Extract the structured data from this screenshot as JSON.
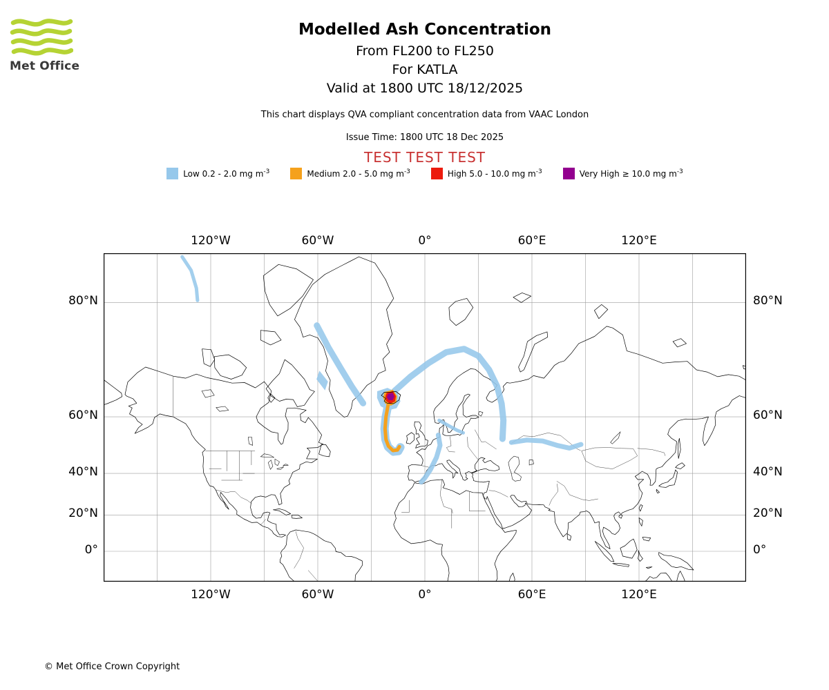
{
  "logo": {
    "text": "Met Office"
  },
  "header": {
    "title": "Modelled Ash Concentration",
    "subtitle_levels": "From FL200 to FL250",
    "subtitle_volcano": "For KATLA",
    "subtitle_valid": "Valid at 1800 UTC 18/12/2025",
    "qva_note": "This chart displays QVA compliant concentration data from VAAC London",
    "issue_time": "Issue Time: 1800 UTC 18 Dec 2025",
    "test_banner": "TEST TEST TEST"
  },
  "legend": {
    "items": [
      {
        "key": "low",
        "label": "Low 0.2 - 2.0 mg m",
        "sup": "-3",
        "color": "#96C8EB"
      },
      {
        "key": "medium",
        "label": "Medium 2.0 - 5.0 mg m",
        "sup": "-3",
        "color": "#F5A11C"
      },
      {
        "key": "high",
        "label": "High 5.0 - 10.0 mg m",
        "sup": "-3",
        "color": "#EC1B0E"
      },
      {
        "key": "very-high",
        "label": "Very High ≥ 10.0 mg m",
        "sup": "-3",
        "color": "#93008F"
      }
    ]
  },
  "map": {
    "lon_ticks": [
      {
        "lon": -120,
        "label": "120°W"
      },
      {
        "lon": -60,
        "label": "60°W"
      },
      {
        "lon": 0,
        "label": "0°"
      },
      {
        "lon": 60,
        "label": "60°E"
      },
      {
        "lon": 120,
        "label": "120°E"
      }
    ],
    "lat_ticks": [
      {
        "lat": 80,
        "label": "80°N"
      },
      {
        "lat": 60,
        "label": "60°N"
      },
      {
        "lat": 40,
        "label": "40°N"
      },
      {
        "lat": 20,
        "label": "20°N"
      },
      {
        "lat": 0,
        "label": "0°"
      }
    ]
  },
  "footer": {
    "copyright": "© Met Office Crown Copyright"
  },
  "chart_data": {
    "type": "map",
    "projection": "mercator",
    "extent": {
      "lon_min": -180,
      "lon_max": 180,
      "lat_min": -16.9,
      "lat_max": 83.9
    },
    "volcano": "KATLA",
    "bands": [
      {
        "level": "low",
        "label": "Low",
        "min_mg_m3": 0.2,
        "max_mg_m3": 2.0,
        "color": "#96C8EB",
        "shapes": [
          {
            "kind": "ribbon",
            "width": 5,
            "points": [
              [
                -136,
                83.6
              ],
              [
                -131,
                82.7
              ],
              [
                -128,
                81.3
              ],
              [
                -127.4,
                80.2
              ]
            ]
          },
          {
            "kind": "ribbon",
            "width": 9,
            "points": [
              [
                -60.5,
                77.5
              ],
              [
                -54,
                74.5
              ],
              [
                -47,
                71
              ],
              [
                -41,
                67.5
              ],
              [
                -36.5,
                64.8
              ],
              [
                -34.6,
                63.6
              ]
            ]
          },
          {
            "kind": "poly",
            "points": [
              [
                -59,
                70.5
              ],
              [
                -54.5,
                68.5
              ],
              [
                -56,
                66.8
              ],
              [
                -60.5,
                69
              ]
            ]
          },
          {
            "kind": "ribbon",
            "width": 9,
            "points": [
              [
                -17,
                66.5
              ],
              [
                -8,
                69.5
              ],
              [
                2,
                72
              ],
              [
                12,
                73.8
              ],
              [
                22,
                74.3
              ],
              [
                30,
                73.2
              ],
              [
                36,
                70.8
              ],
              [
                40.5,
                67.5
              ],
              [
                43,
                63.5
              ],
              [
                44,
                59
              ],
              [
                43.5,
                53.2
              ]
            ]
          },
          {
            "kind": "ribbon",
            "width": 5,
            "points": [
              [
                8,
                59
              ],
              [
                13,
                57.5
              ],
              [
                18,
                56
              ],
              [
                21.5,
                55.2
              ]
            ]
          },
          {
            "kind": "ribbon",
            "width": 7,
            "points": [
              [
                7.5,
                54.5
              ],
              [
                8.5,
                51
              ],
              [
                6.5,
                46.5
              ],
              [
                3,
                41.5
              ],
              [
                0,
                38
              ],
              [
                -2,
                36.2
              ]
            ]
          },
          {
            "kind": "ribbon",
            "width": 7,
            "points": [
              [
                48.5,
                52
              ],
              [
                57,
                52.8
              ],
              [
                66,
                52.5
              ],
              [
                74,
                51
              ],
              [
                81,
                50
              ],
              [
                87.5,
                51.3
              ]
            ]
          },
          {
            "kind": "poly",
            "points": [
              [
                -26.5,
                66.4
              ],
              [
                -21,
                67.1
              ],
              [
                -15.4,
                66.1
              ],
              [
                -13.9,
                64.1
              ],
              [
                -16,
                62.4
              ],
              [
                -20.5,
                61.9
              ],
              [
                -24.6,
                62.9
              ],
              [
                -26.6,
                64.9
              ]
            ]
          },
          {
            "kind": "ribbon",
            "width": 12,
            "points": [
              [
                -20.3,
                63.8
              ],
              [
                -21.9,
                60
              ],
              [
                -22.6,
                56.5
              ],
              [
                -22.1,
                53
              ],
              [
                -20.6,
                50.4
              ],
              [
                -17.6,
                48.7
              ],
              [
                -14.9,
                48.9
              ],
              [
                -13.7,
                50.3
              ]
            ]
          }
        ]
      },
      {
        "level": "medium",
        "label": "Medium",
        "min_mg_m3": 2.0,
        "max_mg_m3": 5.0,
        "color": "#F5A11C",
        "shapes": [
          {
            "kind": "poly",
            "points": [
              [
                -22.4,
                66.2
              ],
              [
                -18,
                66.7
              ],
              [
                -15.7,
                65.3
              ],
              [
                -16.2,
                63.8
              ],
              [
                -19,
                63.1
              ],
              [
                -22.1,
                63.6
              ],
              [
                -23.2,
                65
              ]
            ]
          },
          {
            "kind": "ribbon",
            "width": 5,
            "points": [
              [
                -20.5,
                63.4
              ],
              [
                -21.8,
                60
              ],
              [
                -22.3,
                56.5
              ],
              [
                -21.8,
                53
              ],
              [
                -20.4,
                50.7
              ],
              [
                -17.9,
                49.1
              ],
              [
                -15.4,
                49.3
              ],
              [
                -14.3,
                50.5
              ]
            ]
          }
        ]
      },
      {
        "level": "high",
        "label": "High",
        "min_mg_m3": 5.0,
        "max_mg_m3": 10.0,
        "color": "#EC1B0E",
        "shapes": [
          {
            "kind": "poly",
            "points": [
              [
                -21.3,
                66
              ],
              [
                -18,
                66.4
              ],
              [
                -16.4,
                65.3
              ],
              [
                -16.9,
                64.1
              ],
              [
                -19.5,
                63.6
              ],
              [
                -21.6,
                64.2
              ],
              [
                -21.9,
                65.3
              ]
            ]
          }
        ]
      },
      {
        "level": "very_high",
        "label": "Very High",
        "min_mg_m3": 10.0,
        "max_mg_m3": null,
        "color": "#93008F",
        "shapes": [
          {
            "kind": "poly",
            "points": [
              [
                -20.4,
                65.8
              ],
              [
                -18.2,
                66
              ],
              [
                -17.3,
                65.2
              ],
              [
                -18.2,
                64.4
              ],
              [
                -20.3,
                64.5
              ],
              [
                -21.1,
                65.1
              ]
            ]
          }
        ]
      }
    ]
  }
}
